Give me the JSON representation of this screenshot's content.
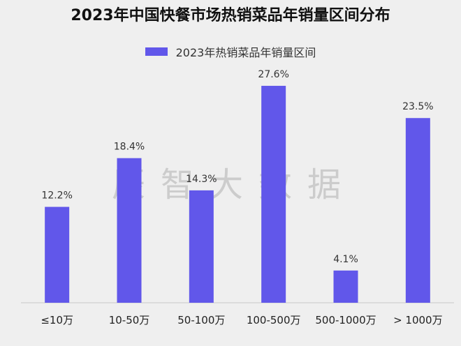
{
  "chart_data": {
    "type": "bar",
    "title": "2023年中国快餐市场热销菜品年销量区间分布",
    "series_name": "2023年热销菜品年销量区间",
    "categories": [
      "≤10万",
      "10-50万",
      "50-100万",
      "100-500万",
      "500-1000万",
      "> 1000万"
    ],
    "values": [
      12.2,
      18.4,
      14.3,
      27.6,
      4.1,
      23.5
    ],
    "value_labels": [
      "12.2%",
      "18.4%",
      "14.3%",
      "27.6%",
      "4.1%",
      "23.5%"
    ],
    "ylim": [
      0,
      30
    ],
    "xlabel": "",
    "ylabel": "",
    "grid": false,
    "legend": "top-center"
  },
  "watermark": "辰智大数据",
  "colors": {
    "bar": "#6157ea",
    "background": "#efefef",
    "axis": "#c8c8c8"
  }
}
